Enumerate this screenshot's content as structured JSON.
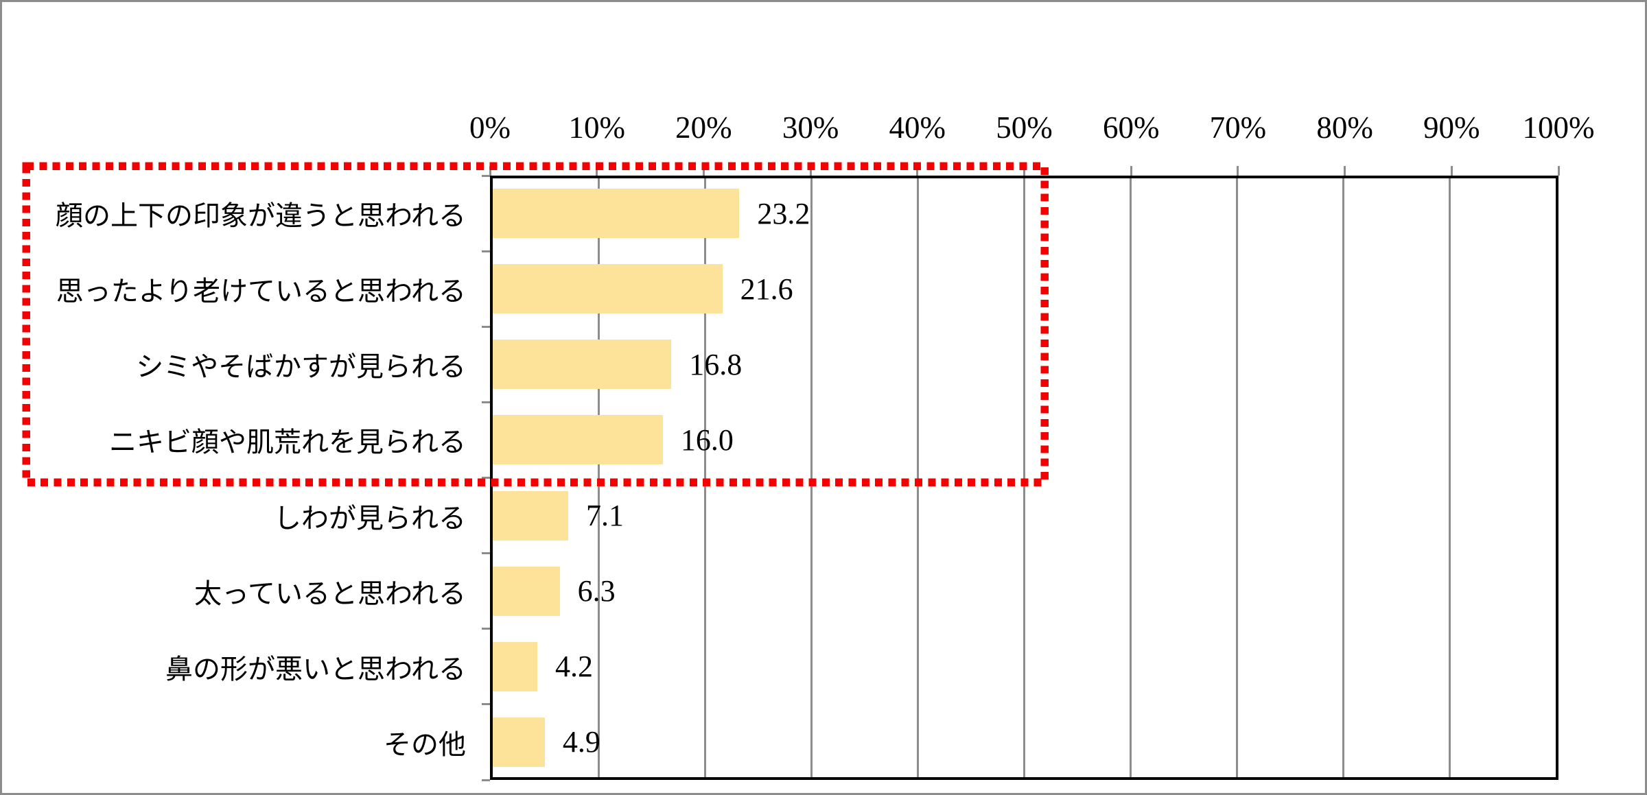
{
  "chart_data": {
    "type": "bar",
    "orientation": "horizontal",
    "title": "",
    "xlabel": "",
    "ylabel": "",
    "categories": [
      "顔の上下の印象が違うと思われる",
      "思ったより老けていると思われる",
      "シミやそばかすが見られる",
      "ニキビ顔や肌荒れを見られる",
      "しわが見られる",
      "太っていると思われる",
      "鼻の形が悪いと思われる",
      "その他"
    ],
    "values": [
      23.2,
      21.6,
      16.8,
      16.0,
      7.1,
      6.3,
      4.2,
      4.9
    ],
    "value_labels": [
      "23.2",
      "21.6",
      "16.8",
      "16.0",
      "7.1",
      "6.3",
      "4.2",
      "4.9"
    ],
    "xlim": [
      0,
      100
    ],
    "x_tick_values": [
      0,
      10,
      20,
      30,
      40,
      50,
      60,
      70,
      80,
      90,
      100
    ],
    "x_tick_labels": [
      "0%",
      "10%",
      "20%",
      "30%",
      "40%",
      "50%",
      "60%",
      "70%",
      "80%",
      "90%",
      "100%"
    ],
    "grid": true,
    "legend": false,
    "axis_position": "top",
    "colors": {
      "bar_fill": "#FDE29A",
      "gridline": "#8C8C8C",
      "plot_border": "#000000",
      "tick": "#8C8C8C",
      "text": "#000000",
      "highlight_box": "#F40000",
      "outer_frame": "#8C8C8C"
    },
    "highlight_box": {
      "style": "dotted",
      "color": "#F40000",
      "encloses_category_indices": [
        0,
        1,
        2,
        3
      ]
    }
  }
}
